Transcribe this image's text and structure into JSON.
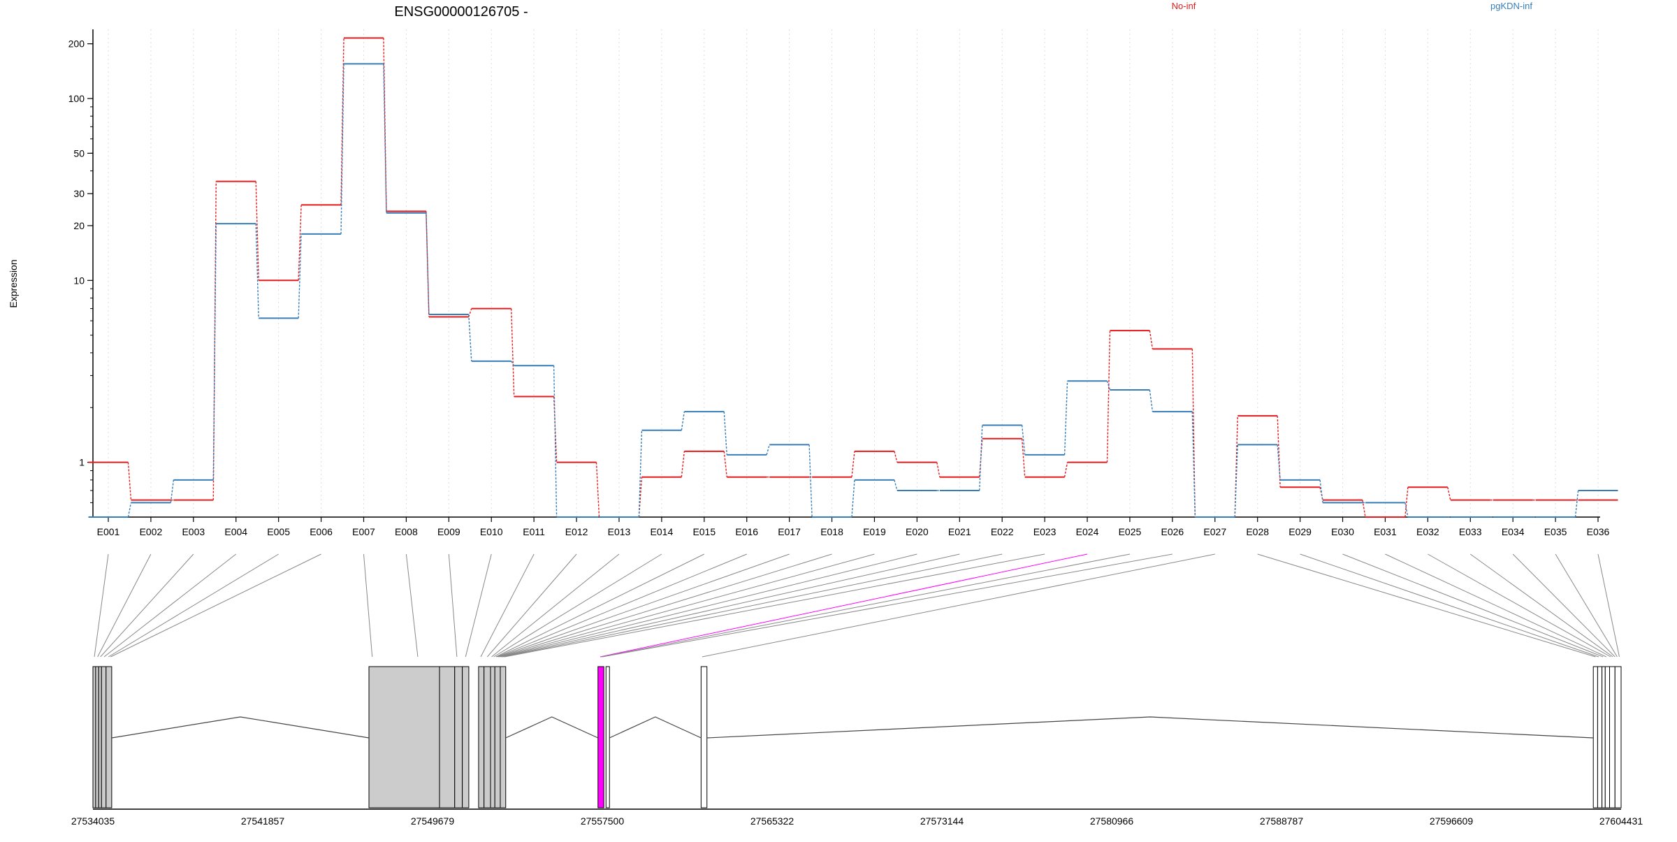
{
  "chart_data": {
    "type": "line",
    "title": "ENSG00000126705 -",
    "ylabel": "Expression",
    "yscale": "log",
    "ylim": [
      0.5,
      240
    ],
    "y_ticks": [
      1,
      10,
      20,
      30,
      50,
      100,
      200
    ],
    "grid": "vertical dotted",
    "legend_position": "top",
    "categories": [
      "E001",
      "E002",
      "E003",
      "E004",
      "E005",
      "E006",
      "E007",
      "E008",
      "E009",
      "E010",
      "E011",
      "E012",
      "E013",
      "E014",
      "E015",
      "E016",
      "E017",
      "E018",
      "E019",
      "E020",
      "E021",
      "E022",
      "E023",
      "E024",
      "E025",
      "E026",
      "E027",
      "E028",
      "E029",
      "E030",
      "E031",
      "E032",
      "E033",
      "E034",
      "E035",
      "E036"
    ],
    "series": [
      {
        "name": "No-inf",
        "color": "#e41a1c",
        "values": [
          1.0,
          0.62,
          0.62,
          35,
          10,
          26,
          215,
          24,
          6.3,
          7,
          2.3,
          1.0,
          0.5,
          0.83,
          1.15,
          0.83,
          0.83,
          0.83,
          1.15,
          1.0,
          0.83,
          1.35,
          0.83,
          1.0,
          5.3,
          4.2,
          0.5,
          1.8,
          0.73,
          0.62,
          0.5,
          0.73,
          0.62,
          0.62,
          0.62,
          0.62
        ]
      },
      {
        "name": "pgKDN-inf",
        "color": "#377eb8",
        "values": [
          0.5,
          0.6,
          0.8,
          20.5,
          6.2,
          18,
          155,
          23.5,
          6.5,
          3.6,
          3.4,
          0.5,
          0.5,
          1.5,
          1.9,
          1.1,
          1.25,
          0.5,
          0.8,
          0.7,
          0.7,
          1.6,
          1.1,
          2.8,
          2.5,
          1.9,
          0.5,
          1.25,
          0.8,
          0.6,
          0.6,
          0.5,
          0.5,
          0.5,
          0.5,
          0.7
        ]
      }
    ],
    "genomic_axis": {
      "range": [
        27534035,
        27604431
      ],
      "tick_labels": [
        "27534035",
        "27541857",
        "27549679",
        "27557500",
        "27565322",
        "27573144",
        "27580966",
        "27588787",
        "27596609",
        "27604431"
      ],
      "highlight_color": "#ff00ff"
    }
  }
}
